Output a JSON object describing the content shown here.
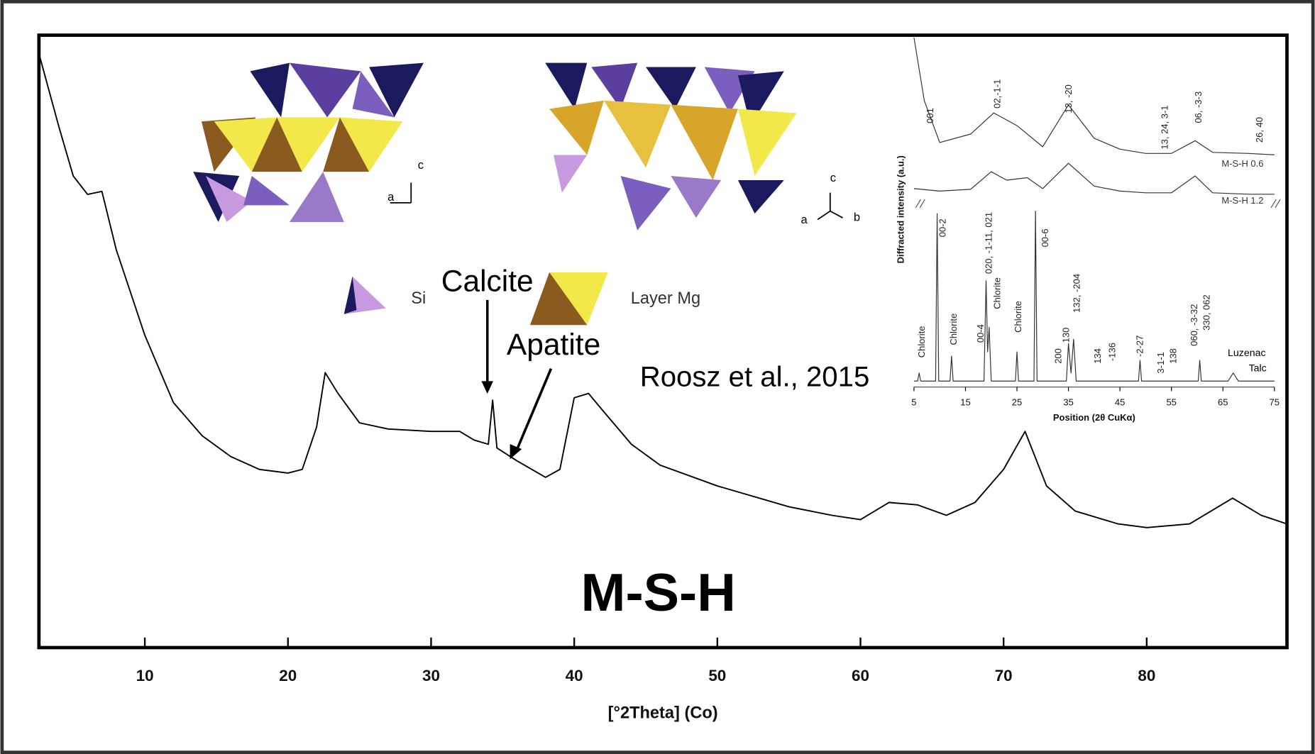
{
  "chart_data": [
    {
      "type": "line",
      "xlabel": "[°2Theta] (Co)",
      "xlim": [
        2.6,
        89.8
      ],
      "ylim": [
        0,
        100
      ],
      "xticks": [
        10,
        20,
        30,
        40,
        50,
        60,
        70,
        80
      ],
      "series": [
        {
          "color": "#000000",
          "x": [
            2.6,
            4,
            5,
            6,
            7,
            8,
            9,
            10,
            12,
            14,
            16,
            18,
            20,
            21,
            22,
            22.6,
            23.5,
            25,
            27,
            30,
            32,
            33,
            34,
            34.3,
            34.6,
            36,
            38,
            39,
            40,
            41,
            42,
            44,
            46,
            50,
            55,
            58,
            60,
            62,
            64,
            66,
            68,
            70,
            71.5,
            73,
            75,
            78,
            80,
            83,
            86,
            88,
            89.8
          ],
          "values": [
            97,
            85,
            77,
            74,
            74.5,
            65,
            58,
            51,
            40,
            34.6,
            31.2,
            29.1,
            28.5,
            29.1,
            36,
            44.9,
            41.5,
            36.7,
            35.7,
            35.3,
            35.3,
            33.9,
            33.2,
            40.4,
            32.6,
            30.5,
            27.8,
            29.1,
            40.8,
            41.5,
            38.7,
            33.2,
            29.8,
            26.4,
            23,
            21.6,
            20.9,
            23.7,
            23.3,
            21.6,
            23.7,
            29.1,
            35.3,
            26.4,
            22.3,
            20.2,
            19.6,
            20.2,
            24.4,
            21.6,
            20.2
          ]
        }
      ],
      "annotations": [
        "Calcite",
        "Apatite",
        "Roosz et al., 2015",
        "M-S-H"
      ]
    },
    {
      "type": "line",
      "xlabel": "Position (2θ CuKα)",
      "ylabel": "Diffracted intensity (a.u.)",
      "xlim": [
        5,
        75
      ],
      "ylim": [
        0,
        100
      ],
      "xticks": [
        5,
        15,
        25,
        35,
        45,
        55,
        65,
        75
      ],
      "series": [
        {
          "name": "M-S-H 0.6",
          "color": "#333333",
          "x": [
            5,
            7,
            10,
            16,
            20.5,
            25,
            30,
            35,
            40,
            45,
            50,
            55,
            59.6,
            63,
            70,
            75
          ],
          "values": [
            99.3,
            81.4,
            69.5,
            71.9,
            77.9,
            74.3,
            68.3,
            80.2,
            70.7,
            67.6,
            66.4,
            66.4,
            70,
            66.7,
            66.4,
            66
          ]
        },
        {
          "name": "M-S-H 1.2",
          "color": "#333333",
          "x": [
            5,
            10,
            16,
            20,
            23,
            27,
            30,
            35,
            40,
            45,
            50,
            55,
            59.6,
            63,
            70,
            75
          ],
          "values": [
            56.4,
            55.7,
            56.2,
            61.2,
            58.8,
            59.5,
            56.4,
            63.6,
            57.1,
            55.7,
            55.2,
            55.2,
            60,
            55.2,
            54.8,
            54.8
          ]
        },
        {
          "color": "#333333",
          "x": [
            5,
            5.7,
            6,
            6.3,
            9.2,
            9.5,
            9.8,
            12,
            12.3,
            12.6,
            18.6,
            19,
            19.3,
            19.6,
            20,
            24.7,
            25,
            25.3,
            28.3,
            28.6,
            28.9,
            34.6,
            35,
            35.5,
            36,
            36.5,
            48.6,
            48.9,
            49.2,
            60.2,
            60.5,
            60.8,
            66,
            67,
            68,
            75
          ],
          "values": [
            1.7,
            1.7,
            4,
            1.7,
            1.7,
            49.3,
            1.7,
            1.7,
            8.8,
            1.7,
            1.7,
            30.2,
            10,
            17,
            1.7,
            1.7,
            10,
            1.7,
            1.7,
            50,
            1.7,
            1.7,
            12.4,
            4,
            13.6,
            1.7,
            1.7,
            7.6,
            1.7,
            1.7,
            7.6,
            1.7,
            1.7,
            4,
            1.7,
            1.7
          ]
        }
      ],
      "annotations": [
        "001",
        "02,-1-1",
        "13, -20",
        "13, 24, 3-1",
        "06, -3-3",
        "26, 40",
        "Chlorite",
        "00-2",
        "Chlorite",
        "00-4",
        "020, -1-11, 021",
        "Chlorite",
        "Chlorite",
        "00-6",
        "200",
        "130",
        "132, -204",
        "134",
        "-136",
        "-2-27",
        "3-1-1",
        "138",
        "060, -3-32",
        "330, 062",
        "Luzenac",
        "Talc"
      ]
    }
  ],
  "structure_labels": {
    "left_a": "a",
    "left_c": "c",
    "right_a": "a",
    "right_b": "b",
    "right_c": "c",
    "si": "Si",
    "layer_mg": "Layer Mg"
  }
}
